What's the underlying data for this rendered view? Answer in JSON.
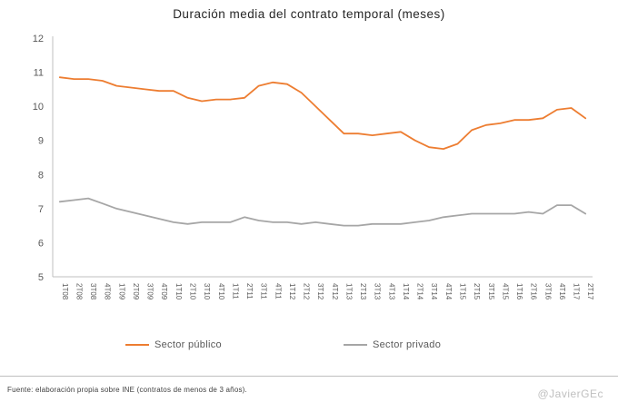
{
  "title": "Duración media del contrato temporal (meses)",
  "legend": {
    "items": [
      {
        "label": "Sector público",
        "color": "#ED7D31"
      },
      {
        "label": "Sector privado",
        "color": "#A6A6A6"
      }
    ]
  },
  "footer": {
    "source": "Fuente: elaboración  propia sobre INE (contratos de menos de 3 años).",
    "credit": "@JavierGEc"
  },
  "colors": {
    "axis": "#BFBFBF",
    "tick_text": "#595959",
    "public_series": "#ED7D31",
    "private_series": "#A6A6A6"
  },
  "chart_data": {
    "type": "line",
    "title": "Duración media del contrato temporal (meses)",
    "xlabel": "",
    "ylabel": "",
    "ylim": [
      5,
      12
    ],
    "yticks": [
      5,
      6,
      7,
      8,
      9,
      10,
      11,
      12
    ],
    "grid": false,
    "legend_position": "bottom",
    "categories": [
      "1T08",
      "2T08",
      "3T08",
      "4T08",
      "1T09",
      "2T09",
      "3T09",
      "4T09",
      "1T10",
      "2T10",
      "3T10",
      "4T10",
      "1T11",
      "2T11",
      "3T11",
      "4T11",
      "1T12",
      "2T12",
      "3T12",
      "4T12",
      "1T13",
      "2T13",
      "3T13",
      "4T13",
      "1T14",
      "2T14",
      "3T14",
      "4T14",
      "1T15",
      "2T15",
      "3T15",
      "4T15",
      "1T16",
      "2T16",
      "3T16",
      "4T16",
      "1T17",
      "2T17"
    ],
    "series": [
      {
        "name": "Sector público",
        "color": "#ED7D31",
        "values": [
          10.85,
          10.8,
          10.8,
          10.75,
          10.6,
          10.55,
          10.5,
          10.45,
          10.45,
          10.25,
          10.15,
          10.2,
          10.2,
          10.25,
          10.6,
          10.7,
          10.65,
          10.4,
          10.0,
          9.6,
          9.2,
          9.2,
          9.15,
          9.2,
          9.25,
          9.0,
          8.8,
          8.75,
          8.9,
          9.3,
          9.45,
          9.5,
          9.6,
          9.6,
          9.65,
          9.9,
          9.95,
          9.65
        ]
      },
      {
        "name": "Sector privado",
        "color": "#A6A6A6",
        "values": [
          7.2,
          7.25,
          7.3,
          7.15,
          7.0,
          6.9,
          6.8,
          6.7,
          6.6,
          6.55,
          6.6,
          6.6,
          6.6,
          6.75,
          6.65,
          6.6,
          6.6,
          6.55,
          6.6,
          6.55,
          6.5,
          6.5,
          6.55,
          6.55,
          6.55,
          6.6,
          6.65,
          6.75,
          6.8,
          6.85,
          6.85,
          6.85,
          6.85,
          6.9,
          6.85,
          7.1,
          7.1,
          6.85
        ]
      }
    ]
  }
}
